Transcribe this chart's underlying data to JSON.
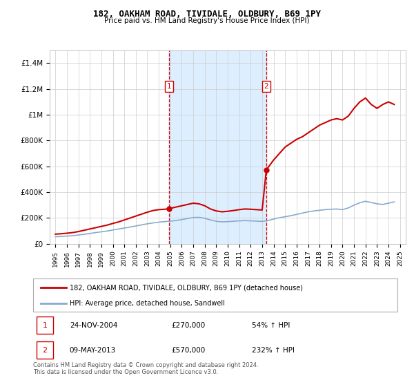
{
  "title": "182, OAKHAM ROAD, TIVIDALE, OLDBURY, B69 1PY",
  "subtitle": "Price paid vs. HM Land Registry's House Price Index (HPI)",
  "sale1_date": 2004.9,
  "sale1_price": 270000,
  "sale1_label": "24-NOV-2004",
  "sale1_hpi_pct": "54% ↑ HPI",
  "sale2_date": 2013.36,
  "sale2_price": 570000,
  "sale2_label": "09-MAY-2013",
  "sale2_hpi_pct": "232% ↑ HPI",
  "legend1": "182, OAKHAM ROAD, TIVIDALE, OLDBURY, B69 1PY (detached house)",
  "legend2": "HPI: Average price, detached house, Sandwell",
  "footer": "Contains HM Land Registry data © Crown copyright and database right 2024.\nThis data is licensed under the Open Government Licence v3.0.",
  "ylim": [
    0,
    1500000
  ],
  "yticks": [
    0,
    200000,
    400000,
    600000,
    800000,
    1000000,
    1200000,
    1400000
  ],
  "red_color": "#cc0000",
  "blue_color": "#88aacc",
  "shade_color": "#ddeeff",
  "marker_box_color": "#cc0000",
  "red_x": [
    1995.0,
    1995.5,
    1996.0,
    1996.5,
    1997.0,
    1997.5,
    1998.0,
    1998.5,
    1999.0,
    1999.5,
    2000.0,
    2000.5,
    2001.0,
    2001.5,
    2002.0,
    2002.5,
    2003.0,
    2003.5,
    2004.0,
    2004.5,
    2004.9,
    2005.0,
    2005.5,
    2006.0,
    2006.5,
    2007.0,
    2007.5,
    2008.0,
    2008.5,
    2009.0,
    2009.5,
    2010.0,
    2010.5,
    2011.0,
    2011.5,
    2012.0,
    2012.5,
    2013.0,
    2013.36,
    2013.5,
    2014.0,
    2014.5,
    2015.0,
    2015.5,
    2016.0,
    2016.5,
    2017.0,
    2017.5,
    2018.0,
    2018.5,
    2019.0,
    2019.5,
    2020.0,
    2020.5,
    2021.0,
    2021.5,
    2022.0,
    2022.5,
    2023.0,
    2023.5,
    2024.0,
    2024.5
  ],
  "red_y": [
    75000,
    78000,
    82000,
    87000,
    95000,
    105000,
    115000,
    125000,
    135000,
    145000,
    158000,
    170000,
    185000,
    200000,
    215000,
    230000,
    245000,
    258000,
    265000,
    268000,
    270000,
    275000,
    285000,
    295000,
    305000,
    315000,
    310000,
    295000,
    270000,
    255000,
    248000,
    252000,
    258000,
    265000,
    270000,
    268000,
    265000,
    262000,
    570000,
    590000,
    650000,
    700000,
    750000,
    780000,
    810000,
    830000,
    860000,
    890000,
    920000,
    940000,
    960000,
    970000,
    960000,
    990000,
    1050000,
    1100000,
    1130000,
    1080000,
    1050000,
    1080000,
    1100000,
    1080000
  ],
  "blue_x": [
    1995.0,
    1995.5,
    1996.0,
    1996.5,
    1997.0,
    1997.5,
    1998.0,
    1998.5,
    1999.0,
    1999.5,
    2000.0,
    2000.5,
    2001.0,
    2001.5,
    2002.0,
    2002.5,
    2003.0,
    2003.5,
    2004.0,
    2004.5,
    2005.0,
    2005.5,
    2006.0,
    2006.5,
    2007.0,
    2007.5,
    2008.0,
    2008.5,
    2009.0,
    2009.5,
    2010.0,
    2010.5,
    2011.0,
    2011.5,
    2012.0,
    2012.5,
    2013.0,
    2013.5,
    2014.0,
    2014.5,
    2015.0,
    2015.5,
    2016.0,
    2016.5,
    2017.0,
    2017.5,
    2018.0,
    2018.5,
    2019.0,
    2019.5,
    2020.0,
    2020.5,
    2021.0,
    2021.5,
    2022.0,
    2022.5,
    2023.0,
    2023.5,
    2024.0,
    2024.5
  ],
  "blue_y": [
    55000,
    57000,
    60000,
    63000,
    68000,
    74000,
    80000,
    87000,
    93000,
    99000,
    107000,
    115000,
    122000,
    130000,
    138000,
    147000,
    155000,
    162000,
    168000,
    172000,
    176000,
    180000,
    188000,
    196000,
    204000,
    205000,
    198000,
    185000,
    175000,
    170000,
    172000,
    175000,
    178000,
    180000,
    178000,
    176000,
    174000,
    180000,
    192000,
    202000,
    210000,
    218000,
    228000,
    238000,
    248000,
    255000,
    260000,
    265000,
    268000,
    270000,
    265000,
    278000,
    300000,
    318000,
    330000,
    320000,
    310000,
    305000,
    315000,
    325000
  ],
  "xticks": [
    1995,
    1996,
    1997,
    1998,
    1999,
    2000,
    2001,
    2002,
    2003,
    2004,
    2005,
    2006,
    2007,
    2008,
    2009,
    2010,
    2011,
    2012,
    2013,
    2014,
    2015,
    2016,
    2017,
    2018,
    2019,
    2020,
    2021,
    2022,
    2023,
    2024,
    2025
  ],
  "xlim": [
    1994.5,
    2025.5
  ]
}
